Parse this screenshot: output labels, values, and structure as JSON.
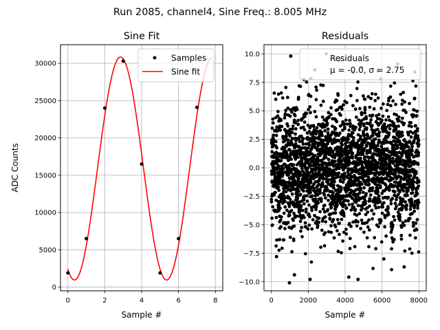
{
  "figure": {
    "suptitle": "Run 2085, channel4, Sine Freq.: 8.005 MHz"
  },
  "chart_data": [
    {
      "type": "scatter+line",
      "title": "Sine Fit",
      "xlabel": "Sample #",
      "ylabel": "ADC Counts",
      "xlim": [
        -0.4,
        8.4
      ],
      "ylim": [
        -500,
        32500
      ],
      "xticks": [
        0,
        2,
        4,
        6,
        8
      ],
      "yticks": [
        0,
        5000,
        10000,
        15000,
        20000,
        25000,
        30000
      ],
      "grid": true,
      "legend": {
        "location": "top-right",
        "entries": [
          "Samples",
          "Sine fit"
        ]
      },
      "series": [
        {
          "name": "Samples",
          "kind": "scatter",
          "color": "#000000",
          "x": [
            0,
            1,
            2,
            3,
            4,
            5,
            6,
            7
          ],
          "y": [
            1900,
            6500,
            24000,
            30300,
            16500,
            1900,
            6500,
            24100
          ]
        },
        {
          "name": "Sine fit",
          "kind": "line",
          "color": "#ff0000",
          "x_range": [
            0,
            7.8
          ],
          "offset": 15900,
          "amplitude": 14950,
          "period_samples": 4.9969,
          "phase": -2.02
        }
      ]
    },
    {
      "type": "scatter",
      "title": "Residuals",
      "xlabel": "Sample #",
      "xlim": [
        -400,
        8400
      ],
      "ylim": [
        -10.8,
        10.8
      ],
      "xticks": [
        0,
        2000,
        4000,
        6000,
        8000
      ],
      "yticks": [
        -10.0,
        -7.5,
        -5.0,
        -2.5,
        0.0,
        2.5,
        5.0,
        7.5,
        10.0
      ],
      "grid": true,
      "legend": {
        "location": "top-right",
        "title_line": "Residuals",
        "stats_line": "μ = -0.0, σ = 2.75"
      },
      "series": [
        {
          "name": "Residuals",
          "color": "#000000",
          "n_points": 8000,
          "mean": 0.0,
          "sigma": 2.75,
          "x_range": [
            0,
            8000
          ],
          "outliers": [
            [
              980,
              -10.1
            ],
            [
              2100,
              -9.8
            ],
            [
              4200,
              -9.6
            ],
            [
              4700,
              -9.8
            ],
            [
              1050,
              9.8
            ],
            [
              2350,
              8.6
            ],
            [
              4900,
              8.8
            ],
            [
              6850,
              9.1
            ],
            [
              7200,
              -8.7
            ],
            [
              1250,
              -9.4
            ],
            [
              280,
              -7.8
            ],
            [
              6100,
              -8.0
            ]
          ]
        }
      ]
    }
  ]
}
